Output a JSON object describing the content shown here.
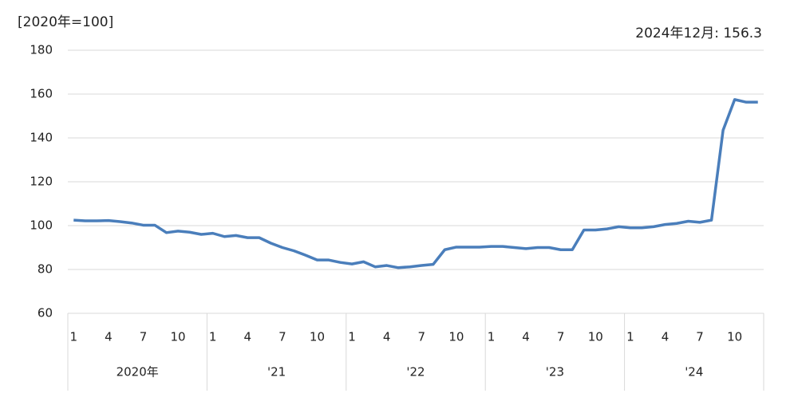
{
  "chart_data": {
    "type": "line",
    "unit_label": "[2020年=100]",
    "annotation": "2024年12月: 156.3",
    "categories": [
      "1",
      null,
      null,
      "4",
      null,
      null,
      "7",
      null,
      null,
      "10",
      null,
      null,
      "1",
      null,
      null,
      "4",
      null,
      null,
      "7",
      null,
      null,
      "10",
      null,
      null,
      "1",
      null,
      null,
      "4",
      null,
      null,
      "7",
      null,
      null,
      "10",
      null,
      null,
      "1",
      null,
      null,
      "4",
      null,
      null,
      "7",
      null,
      null,
      "10",
      null,
      null,
      "1",
      null,
      null,
      "4",
      null,
      null,
      "7",
      null,
      null,
      "10",
      null,
      null
    ],
    "groups": [
      "2020年",
      "'21",
      "'22",
      "'23",
      "'24"
    ],
    "series": [
      {
        "color": "#4a7ebb",
        "values": [
          102.5,
          102.2,
          102.2,
          102.3,
          101.8,
          101.2,
          100.2,
          100.2,
          96.8,
          97.5,
          97.0,
          96.0,
          96.5,
          95.0,
          95.5,
          94.5,
          94.5,
          92.0,
          90.0,
          88.5,
          86.5,
          84.3,
          84.3,
          83.2,
          82.5,
          83.5,
          81.2,
          81.8,
          80.8,
          81.2,
          81.8,
          82.3,
          89.0,
          90.2,
          90.2,
          90.2,
          90.5,
          90.5,
          90.0,
          89.5,
          90.0,
          90.0,
          89.0,
          89.0,
          98.0,
          98.0,
          98.5,
          99.5,
          99.0,
          99.0,
          99.5,
          100.5,
          101.0,
          102.0,
          101.5,
          102.5,
          143.5,
          157.5,
          156.3,
          156.3
        ]
      }
    ],
    "ylim": [
      60,
      180
    ],
    "yticks": [
      60,
      80,
      100,
      120,
      140,
      160,
      180
    ],
    "grid": true
  }
}
